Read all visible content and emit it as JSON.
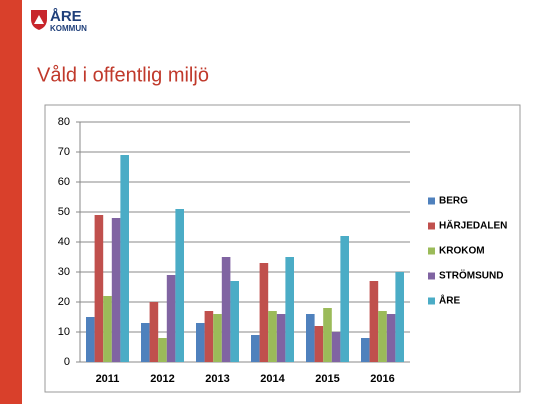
{
  "logo": {
    "name": "ÅRE",
    "sub": "KOMMUN"
  },
  "chart_data": {
    "type": "bar",
    "title": "Våld i offentlig miljö",
    "categories": [
      "2011",
      "2012",
      "2013",
      "2014",
      "2015",
      "2016"
    ],
    "series": [
      {
        "name": "BERG",
        "color": "#4f81bd",
        "values": [
          15,
          13,
          13,
          9,
          16,
          8
        ]
      },
      {
        "name": "HÄRJEDALEN",
        "color": "#c0504d",
        "values": [
          49,
          20,
          17,
          33,
          12,
          27
        ]
      },
      {
        "name": "KROKOM",
        "color": "#9bbb59",
        "values": [
          22,
          8,
          16,
          17,
          18,
          17
        ]
      },
      {
        "name": "STRÖMSUND",
        "color": "#8064a2",
        "values": [
          48,
          29,
          35,
          16,
          10,
          16
        ]
      },
      {
        "name": "ÅRE",
        "color": "#4bacc6",
        "values": [
          69,
          51,
          27,
          35,
          42,
          30
        ]
      }
    ],
    "ylim": [
      0,
      80
    ],
    "yticks": [
      0,
      10,
      20,
      30,
      40,
      50,
      60,
      70,
      80
    ],
    "grid": true,
    "legend": "right"
  }
}
